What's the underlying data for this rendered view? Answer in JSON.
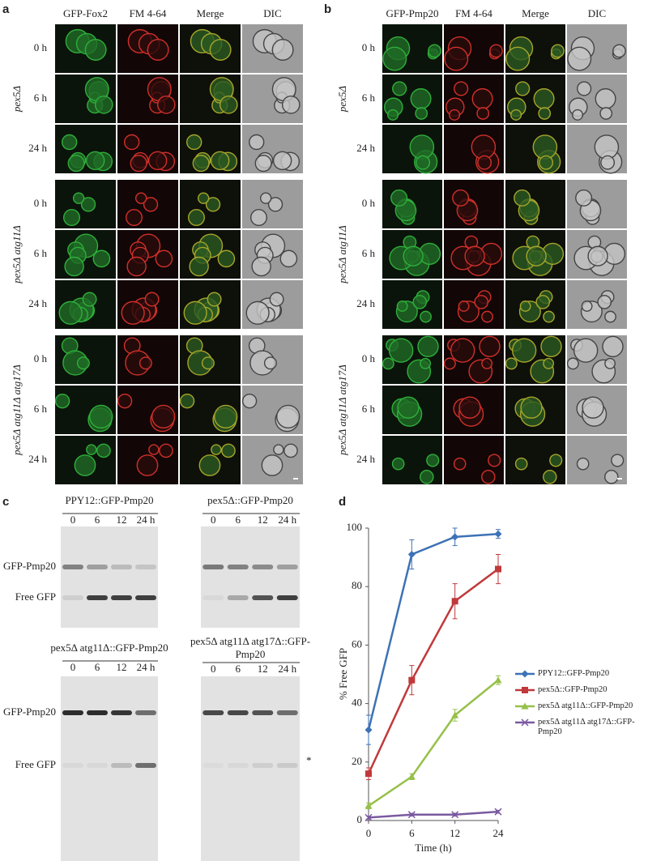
{
  "panel_a": {
    "label": "a",
    "columns": [
      "GFP-Fox2",
      "FM 4-64",
      "Merge",
      "DIC"
    ],
    "groups": [
      {
        "strain": "pex5Δ",
        "times": [
          "0 h",
          "6 h",
          "24 h"
        ]
      },
      {
        "strain": "pex5Δ atg11Δ",
        "times": [
          "0 h",
          "6 h",
          "24 h"
        ]
      },
      {
        "strain": "pex5Δ atg11Δ atg17Δ",
        "times": [
          "0 h",
          "6 h",
          "24 h"
        ]
      }
    ]
  },
  "panel_b": {
    "label": "b",
    "columns": [
      "GFP-Pmp20",
      "FM 4-64",
      "Merge",
      "DIC"
    ],
    "groups": [
      {
        "strain": "pex5Δ",
        "times": [
          "0 h",
          "6 h",
          "24 h"
        ]
      },
      {
        "strain": "pex5Δ atg11Δ",
        "times": [
          "0 h",
          "6 h",
          "24 h"
        ]
      },
      {
        "strain": "pex5Δ atg11Δ atg17Δ",
        "times": [
          "0 h",
          "6 h",
          "24 h"
        ]
      }
    ]
  },
  "panel_c": {
    "label": "c",
    "blots": [
      {
        "title": "PPY12::GFP-Pmp20",
        "lanes": [
          "0",
          "6",
          "12",
          "24 h"
        ],
        "bands": [
          "GFP-Pmp20",
          "Free GFP"
        ]
      },
      {
        "title": "pex5Δ::GFP-Pmp20",
        "lanes": [
          "0",
          "6",
          "12",
          "24 h"
        ]
      },
      {
        "title": "pex5Δ atg11Δ::GFP-Pmp20",
        "lanes": [
          "0",
          "6",
          "12",
          "24 h"
        ],
        "bands": [
          "GFP-Pmp20",
          "Free GFP"
        ]
      },
      {
        "title": "pex5Δ atg11Δ atg17Δ::GFP-Pmp20",
        "lanes": [
          "0",
          "6",
          "12",
          "24 h"
        ],
        "note": "*"
      }
    ]
  },
  "chart_data": {
    "type": "line",
    "label": "d",
    "xlabel": "Time (h)",
    "ylabel": "% Free GFP",
    "categories": [
      "0",
      "6",
      "12",
      "24"
    ],
    "ylim": [
      0,
      100
    ],
    "yticks": [
      0,
      20,
      40,
      60,
      80,
      100
    ],
    "series": [
      {
        "name": "PPY12::GFP-Pmp20",
        "color": "#3d72b6",
        "marker": "diamond",
        "values": [
          31,
          91,
          97,
          98
        ],
        "errors": [
          5,
          5,
          3,
          1.5
        ]
      },
      {
        "name": "pex5Δ::GFP-Pmp20",
        "color": "#c0393b",
        "marker": "square",
        "values": [
          16,
          48,
          75,
          86
        ],
        "errors": [
          2,
          5,
          6,
          5
        ]
      },
      {
        "name": "pex5Δ atg11Δ::GFP-Pmp20",
        "color": "#96c04a",
        "marker": "triangle",
        "values": [
          5,
          15,
          36,
          48
        ],
        "errors": [
          1,
          1,
          2,
          1.5
        ]
      },
      {
        "name": "pex5Δ atg11Δ atg17Δ::GFP-Pmp20",
        "color": "#7a5aa0",
        "marker": "cross",
        "values": [
          1,
          2,
          2,
          3
        ],
        "errors": [
          0.5,
          0.5,
          0.5,
          0.5
        ]
      }
    ]
  }
}
